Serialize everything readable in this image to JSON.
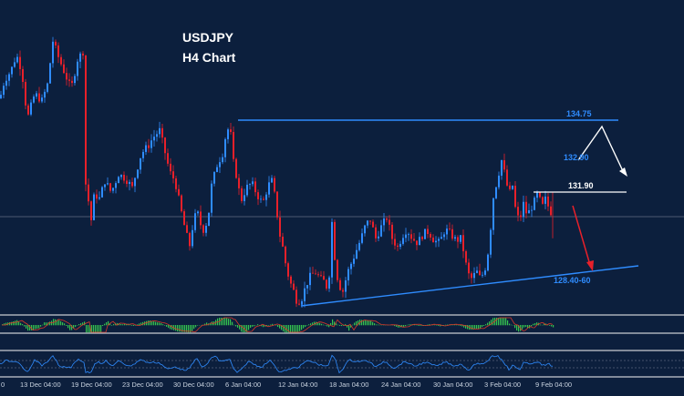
{
  "chart_data": {
    "type": "candlestick",
    "title": "USDJPY",
    "subtitle": "H4 Chart",
    "colors": {
      "background": "#0c1f3d",
      "bull": "#2f8cff",
      "bear": "#e8202a",
      "resistance_line": "#2f8cff",
      "trendline": "#2f8cff",
      "projection_up": "#ffffff",
      "projection_down": "#e8202a",
      "macd_bars": "#35c24f",
      "macd_line": "#d83a2a",
      "oscillator_line": "#2f8cff",
      "separator": "#c8ccd2"
    },
    "levels": [
      {
        "label": "134.75",
        "price": 134.75
      },
      {
        "label": "132.90",
        "price": 132.9
      },
      {
        "label": "131.90",
        "price": 131.9
      },
      {
        "label": "128.40-60",
        "price": 128.5
      }
    ],
    "x_tick_labels": [
      "13 Dec 04:00",
      "19 Dec 04:00",
      "23 Dec 04:00",
      "30 Dec 04:00",
      "6 Jan 04:00",
      "12 Jan 04:00",
      "18 Jan 04:00",
      "24 Jan 04:00",
      "30 Jan 04:00",
      "3 Feb 04:00",
      "9 Feb 04:00"
    ],
    "x_tick_partial": "0",
    "price_path": [
      [
        0,
        135.7
      ],
      [
        5,
        136.5
      ],
      [
        12,
        136.9
      ],
      [
        18,
        137.6
      ],
      [
        24,
        136.9
      ],
      [
        30,
        134.8
      ],
      [
        38,
        135.9
      ],
      [
        46,
        135.6
      ],
      [
        52,
        136.3
      ],
      [
        58,
        138.2
      ],
      [
        64,
        137.5
      ],
      [
        70,
        136.9
      ],
      [
        78,
        136.1
      ],
      [
        85,
        137.4
      ],
      [
        92,
        137.8
      ],
      [
        93,
        132.2
      ],
      [
        96,
        131.5
      ],
      [
        100,
        130.4
      ],
      [
        104,
        131.7
      ],
      [
        108,
        131.2
      ],
      [
        115,
        132.1
      ],
      [
        122,
        131.6
      ],
      [
        130,
        132.4
      ],
      [
        138,
        132.2
      ],
      [
        145,
        131.8
      ],
      [
        150,
        132.6
      ],
      [
        155,
        133.3
      ],
      [
        162,
        133.6
      ],
      [
        168,
        134.0
      ],
      [
        175,
        134.3
      ],
      [
        180,
        133.5
      ],
      [
        186,
        132.5
      ],
      [
        192,
        132.1
      ],
      [
        198,
        130.9
      ],
      [
        204,
        129.8
      ],
      [
        208,
        129.3
      ],
      [
        212,
        130.3
      ],
      [
        216,
        130.8
      ],
      [
        222,
        129.9
      ],
      [
        228,
        130.4
      ],
      [
        232,
        131.9
      ],
      [
        238,
        132.8
      ],
      [
        244,
        133.3
      ],
      [
        248,
        134.2
      ],
      [
        252,
        134.5
      ],
      [
        256,
        132.9
      ],
      [
        260,
        132.2
      ],
      [
        264,
        131.2
      ],
      [
        270,
        131.8
      ],
      [
        276,
        132.0
      ],
      [
        282,
        131.5
      ],
      [
        288,
        131.1
      ],
      [
        294,
        131.9
      ],
      [
        298,
        132.1
      ],
      [
        302,
        131.3
      ],
      [
        306,
        129.9
      ],
      [
        310,
        129.2
      ],
      [
        314,
        128.3
      ],
      [
        318,
        127.7
      ],
      [
        322,
        127.3
      ],
      [
        326,
        126.8
      ],
      [
        331,
        127.0
      ],
      [
        336,
        127.6
      ],
      [
        341,
        128.0
      ],
      [
        346,
        128.1
      ],
      [
        352,
        127.8
      ],
      [
        356,
        127.7
      ],
      [
        360,
        127.3
      ],
      [
        364,
        130.3
      ],
      [
        367,
        128.8
      ],
      [
        371,
        127.6
      ],
      [
        376,
        127.3
      ],
      [
        381,
        128.1
      ],
      [
        386,
        128.6
      ],
      [
        391,
        129.1
      ],
      [
        396,
        129.6
      ],
      [
        401,
        130.2
      ],
      [
        406,
        130.4
      ],
      [
        412,
        129.6
      ],
      [
        418,
        130.1
      ],
      [
        424,
        130.5
      ],
      [
        430,
        129.6
      ],
      [
        436,
        129.2
      ],
      [
        441,
        129.7
      ],
      [
        446,
        130.0
      ],
      [
        452,
        129.6
      ],
      [
        458,
        129.4
      ],
      [
        464,
        129.8
      ],
      [
        470,
        129.9
      ],
      [
        476,
        129.5
      ],
      [
        482,
        129.4
      ],
      [
        488,
        130.0
      ],
      [
        494,
        129.8
      ],
      [
        500,
        129.5
      ],
      [
        506,
        129.6
      ],
      [
        510,
        128.6
      ],
      [
        514,
        128.0
      ],
      [
        518,
        127.8
      ],
      [
        522,
        128.2
      ],
      [
        526,
        127.9
      ],
      [
        531,
        128.1
      ],
      [
        536,
        129.2
      ],
      [
        541,
        131.4
      ],
      [
        546,
        132.3
      ],
      [
        550,
        133.0
      ],
      [
        554,
        132.3
      ],
      [
        558,
        131.5
      ],
      [
        562,
        131.9
      ],
      [
        566,
        130.6
      ],
      [
        570,
        130.4
      ],
      [
        574,
        131.1
      ],
      [
        578,
        130.6
      ],
      [
        582,
        130.9
      ],
      [
        586,
        131.2
      ],
      [
        590,
        131.6
      ],
      [
        594,
        130.9
      ],
      [
        598,
        131.3
      ],
      [
        602,
        130.9
      ],
      [
        606,
        130.6
      ]
    ]
  }
}
